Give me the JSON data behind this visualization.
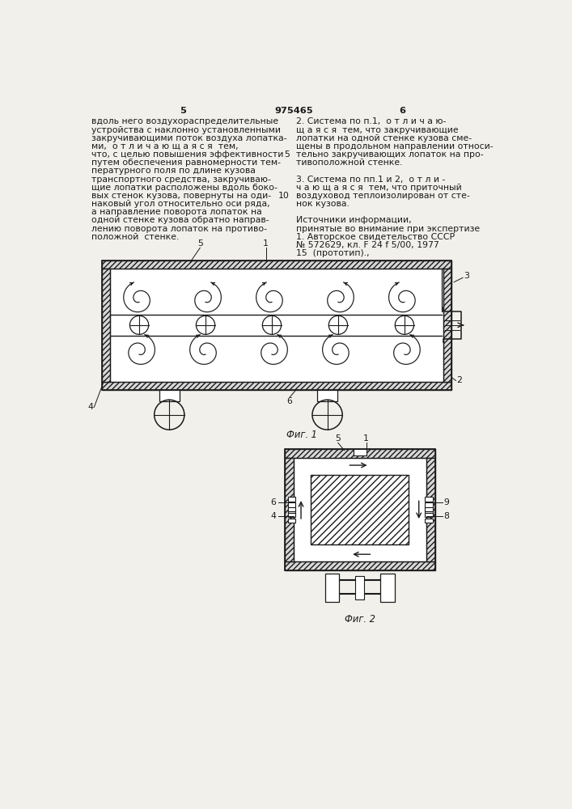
{
  "bg_color": "#f2f0eb",
  "line_color": "#1a1a1a",
  "title_text": "975465",
  "page_left": "5",
  "page_right": "6",
  "text_left": [
    "вдоль него воздухораспределительные",
    "устройства с наклонно установленными",
    "закручивающими поток воздуха лопатка-",
    "ми,  о т л и ч а ю щ а я с я  тем,",
    "что, с целью повышения эффективности",
    "путем обеспечения равномерности тем-",
    "пературного поля по длине кузова",
    "транспортного средства, закручиваю-",
    "щие лопатки расположены вдоль боко-",
    "вых стенок кузова, повернуты на оди-",
    "наковый угол относительно оси ряда,",
    "а направление поворота лопаток на",
    "одной стенке кузова обратно направ-",
    "лению поворота лопаток на противо-",
    "положной  стенке."
  ],
  "text_right": [
    "2. Система по п.1,  о т л и ч а ю-",
    "щ а я с я  тем, что закручивающие",
    "лопатки на одной стенке кузова сме-",
    "щены в продольном направлении относи-",
    "тельно закручивающих лопаток на про-",
    "тивоположной стенке.",
    "",
    "3. Система по пп.1 и 2,  о т л и -",
    "ч а ю щ а я с я  тем, что приточный",
    "воздуховод теплоизолирован от сте-",
    "нок кузова.",
    "",
    "Источники информации,",
    "принятые во внимание при экспертизе",
    "1. Авторское свидетельство СССР",
    "№ 572629, кл. F 24 f 5/00, 1977",
    "15  (прототип).,"
  ],
  "line_numbers": {
    "5": 4,
    "10": 9
  },
  "fig1_caption": "Фиг. 1",
  "fig2_caption": "Фиг. 2"
}
